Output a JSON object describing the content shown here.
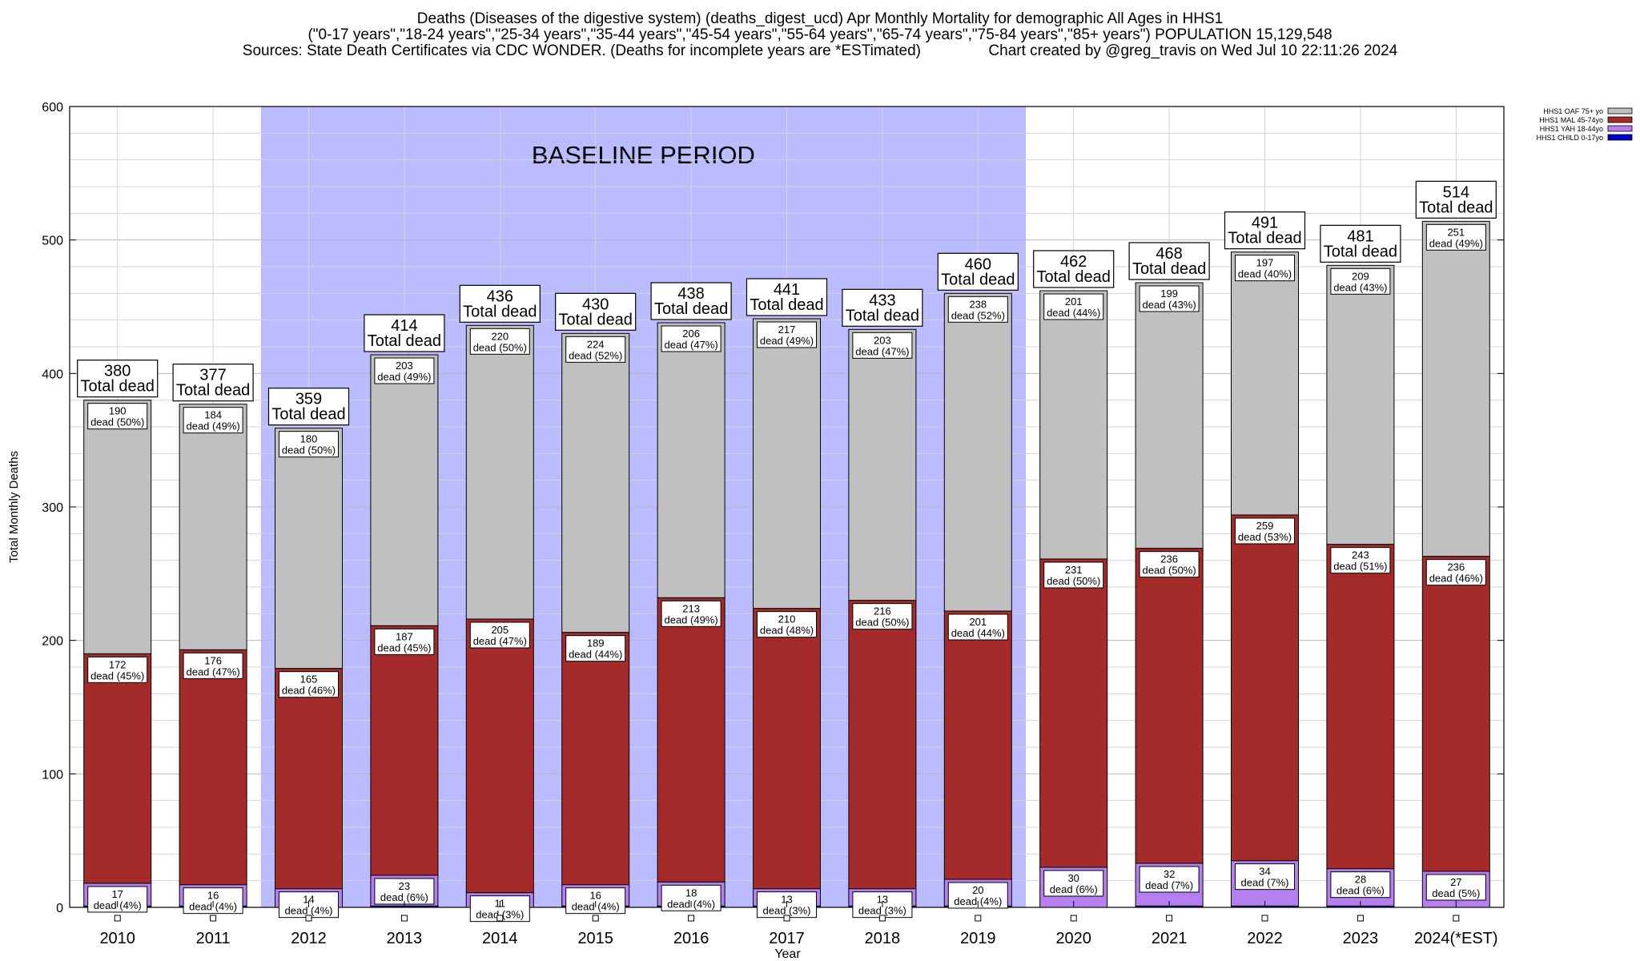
{
  "header": {
    "title_line1": "Deaths (Diseases of the digestive system) (deaths_digest_ucd) Apr Monthly Mortality for demographic All Ages in HHS1",
    "title_line2": "(\"0-17 years\",\"18-24 years\",\"25-34 years\",\"35-44 years\",\"45-54 years\",\"55-64 years\",\"65-74 years\",\"75-84 years\",\"85+ years\") POPULATION 15,129,548",
    "title_line3": "Sources: State Death Certificates via CDC WONDER. (Deaths for incomplete years are *ESTimated)                Chart created by @greg_travis on Wed Jul 10 22:11:26 2024"
  },
  "chart_data": {
    "type": "bar",
    "stacked": true,
    "xlabel": "Year",
    "ylabel": "Total Monthly Deaths",
    "ylim": [
      0,
      600
    ],
    "yticks": [
      0,
      100,
      200,
      300,
      400,
      500,
      600
    ],
    "grid": true,
    "legend_position": "top-right",
    "baseline_label": "BASELINE PERIOD",
    "baseline_range": [
      "2012",
      "2019"
    ],
    "total_label_suffix": "Total dead",
    "segment_label_prefix": "dead",
    "categories": [
      "2010",
      "2011",
      "2012",
      "2013",
      "2014",
      "2015",
      "2016",
      "2017",
      "2018",
      "2019",
      "2020",
      "2021",
      "2022",
      "2023",
      "2024(*EST)"
    ],
    "totals": [
      380,
      377,
      359,
      414,
      436,
      430,
      438,
      441,
      433,
      460,
      462,
      468,
      491,
      481,
      514
    ],
    "series": [
      {
        "name": "HHS1 CHILD 0-17yo",
        "color": "#0000cc",
        "values": [
          1,
          1,
          0,
          1,
          0,
          1,
          1,
          1,
          1,
          1,
          0,
          1,
          1,
          1,
          0
        ],
        "labels": []
      },
      {
        "name": "HHS1 YAH 18-44yo",
        "color": "#b57ff0",
        "values": [
          17,
          16,
          14,
          23,
          11,
          16,
          18,
          13,
          13,
          20,
          30,
          32,
          34,
          28,
          27
        ],
        "labels": [
          "(4%)",
          "(4%)",
          "(4%)",
          "(6%)",
          "(3%)",
          "(4%)",
          "(4%)",
          "(3%)",
          "(3%)",
          "(4%)",
          "(6%)",
          "(7%)",
          "(7%)",
          "(6%)",
          "(5%)"
        ]
      },
      {
        "name": "HHS1 MAL 45-74yo",
        "color": "#a52a2a",
        "values": [
          172,
          176,
          165,
          187,
          205,
          189,
          213,
          210,
          216,
          201,
          231,
          236,
          259,
          243,
          236
        ],
        "labels": [
          "(45%)",
          "(47%)",
          "(46%)",
          "(45%)",
          "(47%)",
          "(44%)",
          "(49%)",
          "(48%)",
          "(50%)",
          "(44%)",
          "(50%)",
          "(50%)",
          "(53%)",
          "(51%)",
          "(46%)"
        ]
      },
      {
        "name": "HHS1 OAF 75+ yo",
        "color": "#c0c0c0",
        "values": [
          190,
          184,
          180,
          203,
          220,
          224,
          206,
          217,
          203,
          238,
          201,
          199,
          197,
          209,
          251
        ],
        "labels": [
          "(50%)",
          "(49%)",
          "(50%)",
          "(49%)",
          "(50%)",
          "(52%)",
          "(47%)",
          "(49%)",
          "(47%)",
          "(52%)",
          "(44%)",
          "(43%)",
          "(40%)",
          "(43%)",
          "(49%)"
        ]
      }
    ]
  }
}
